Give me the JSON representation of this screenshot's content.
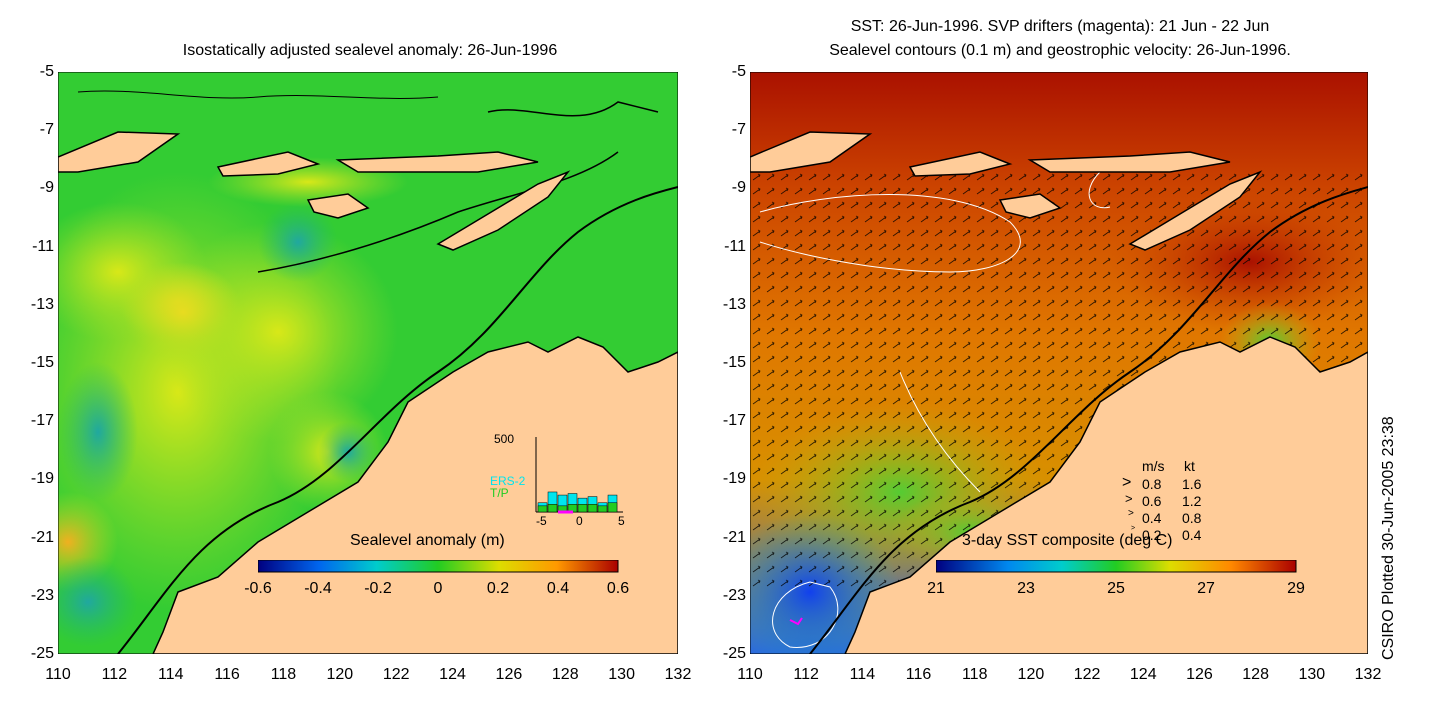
{
  "left_panel": {
    "title": "Isostatically adjusted sealevel anomaly: 26-Jun-1996",
    "y_ticks": [
      "-5",
      "-7",
      "-9",
      "-11",
      "-13",
      "-15",
      "-17",
      "-19",
      "-21",
      "-23",
      "-25"
    ],
    "x_ticks": [
      "110",
      "112",
      "114",
      "116",
      "118",
      "120",
      "122",
      "124",
      "126",
      "128",
      "130",
      "132"
    ],
    "colorbar": {
      "label": "Sealevel anomaly (m)",
      "ticks": [
        "-0.6",
        "-0.4",
        "-0.2",
        "0",
        "0.2",
        "0.4",
        "0.6"
      ]
    },
    "inset": {
      "y_max_label": "500",
      "series_labels": [
        "ERS-2",
        "T/P"
      ],
      "x_ticks": [
        "-5",
        "0",
        "5"
      ],
      "ers2_values": [
        60,
        130,
        110,
        120,
        90,
        100,
        60,
        110
      ],
      "tp_values": [
        40,
        50,
        40,
        50,
        50,
        50,
        40,
        60
      ]
    }
  },
  "right_panel": {
    "title_line1": "SST: 26-Jun-1996. SVP drifters (magenta): 21 Jun - 22 Jun",
    "title_line2": "Sealevel contours (0.1 m) and geostrophic velocity: 26-Jun-1996.",
    "y_ticks": [
      "-5",
      "-7",
      "-9",
      "-11",
      "-13",
      "-15",
      "-17",
      "-19",
      "-21",
      "-23",
      "-25"
    ],
    "x_ticks": [
      "110",
      "112",
      "114",
      "116",
      "118",
      "120",
      "122",
      "124",
      "126",
      "128",
      "130",
      "132"
    ],
    "colorbar": {
      "label": "3-day SST composite (deg C)",
      "ticks": [
        "21",
        "23",
        "25",
        "27",
        "29"
      ]
    },
    "velocity_legend": {
      "header_ms": "m/s",
      "header_kt": "kt",
      "rows": [
        {
          "ms": "0.8",
          "kt": "1.6"
        },
        {
          "ms": "0.6",
          "kt": "1.2"
        },
        {
          "ms": "0.4",
          "kt": "0.8"
        },
        {
          "ms": "0.2",
          "kt": "0.4"
        }
      ]
    }
  },
  "credit": "CSIRO Plotted 30-Jun-2005 23:38",
  "colors": {
    "land": "#ffcc99",
    "sla_ocean": "#22cc22",
    "sst_warm": "#dd6600",
    "sst_hot": "#aa1100",
    "ers2": "#00e5ee",
    "tp": "#22cc22",
    "drifter": "#ff00ff"
  }
}
